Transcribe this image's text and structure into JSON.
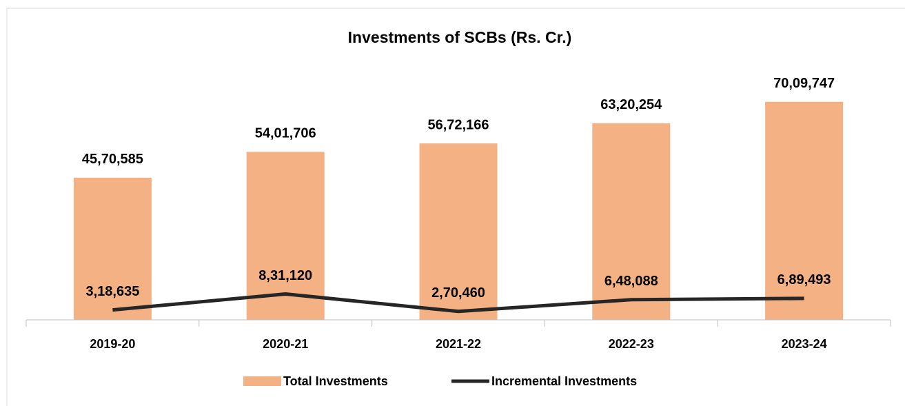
{
  "chart_data": {
    "type": "bar",
    "title": "Investments of SCBs (Rs. Cr.)",
    "categories": [
      "2019-20",
      "2020-21",
      "2021-22",
      "2022-23",
      "2023-24"
    ],
    "ylim": [
      0,
      8000000
    ],
    "series": [
      {
        "name": "Total Investments",
        "type": "bar",
        "color": "#f4b183",
        "values": [
          4570585,
          5401706,
          5672166,
          6320254,
          7009747
        ],
        "value_labels": [
          "45,70,585",
          "54,01,706",
          "56,72,166",
          "63,20,254",
          "70,09,747"
        ]
      },
      {
        "name": "Incremental Investments",
        "type": "line",
        "color": "#262626",
        "values": [
          318635,
          831120,
          270460,
          648088,
          689493
        ],
        "value_labels": [
          "3,18,635",
          "8,31,120",
          "2,70,460",
          "6,48,088",
          "6,89,493"
        ]
      }
    ]
  }
}
